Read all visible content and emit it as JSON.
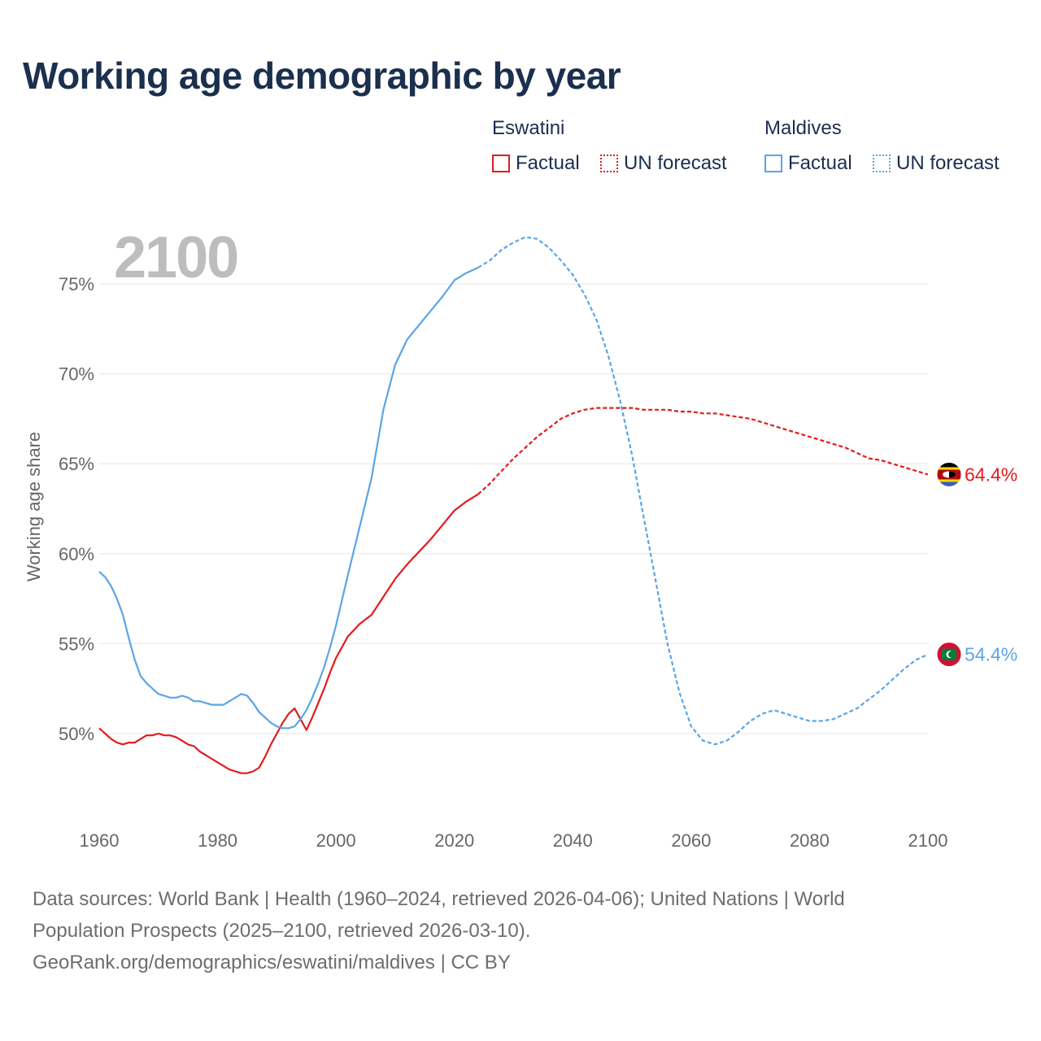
{
  "title": "Working age demographic by year",
  "current_year": "2100",
  "legend": {
    "groups": [
      {
        "country": "Eswatini",
        "color": "#e41a1c",
        "items": [
          {
            "label": "Factual",
            "style": "solid"
          },
          {
            "label": "UN forecast",
            "style": "dotted"
          }
        ]
      },
      {
        "country": "Maldives",
        "color": "#5aa5e6",
        "items": [
          {
            "label": "Factual",
            "style": "solid"
          },
          {
            "label": "UN forecast",
            "style": "dotted"
          }
        ]
      }
    ]
  },
  "footer": {
    "line1": "Data sources: World Bank | Health (1960–2024, retrieved 2026-04-06); United Nations | World",
    "line2": "Population Prospects (2025–2100, retrieved 2026-03-10).",
    "line3": "GeoRank.org/demographics/eswatini/maldives | CC BY"
  },
  "chart_data": {
    "type": "line",
    "title": "Working age demographic by year",
    "xlabel": "",
    "ylabel": "Working age share",
    "xlim": [
      1960,
      2100
    ],
    "ylim": [
      45,
      78
    ],
    "x_ticks": [
      1960,
      1980,
      2000,
      2020,
      2040,
      2060,
      2080,
      2100
    ],
    "y_ticks": [
      50,
      55,
      60,
      65,
      70,
      75
    ],
    "y_tick_labels": [
      "50%",
      "55%",
      "60%",
      "65%",
      "70%",
      "75%"
    ],
    "grid": "horizontal",
    "factual_range": [
      1960,
      2024
    ],
    "forecast_range": [
      2025,
      2100
    ],
    "series": [
      {
        "name": "Eswatini",
        "color": "#e41a1c",
        "end_label": "64.4%",
        "flag": "eswatini",
        "x": [
          1960,
          1961,
          1962,
          1963,
          1964,
          1965,
          1966,
          1967,
          1968,
          1969,
          1970,
          1971,
          1972,
          1973,
          1974,
          1975,
          1976,
          1977,
          1978,
          1979,
          1980,
          1981,
          1982,
          1983,
          1984,
          1985,
          1986,
          1987,
          1988,
          1989,
          1990,
          1991,
          1992,
          1993,
          1994,
          1995,
          1996,
          1997,
          1998,
          1999,
          2000,
          2002,
          2004,
          2006,
          2008,
          2010,
          2012,
          2014,
          2016,
          2018,
          2020,
          2022,
          2024,
          2026,
          2028,
          2030,
          2032,
          2034,
          2036,
          2038,
          2040,
          2042,
          2044,
          2046,
          2048,
          2050,
          2052,
          2054,
          2056,
          2058,
          2060,
          2062,
          2064,
          2066,
          2068,
          2070,
          2072,
          2074,
          2076,
          2078,
          2080,
          2082,
          2084,
          2086,
          2088,
          2090,
          2092,
          2094,
          2096,
          2098,
          2100
        ],
        "y": [
          50.3,
          50.0,
          49.7,
          49.5,
          49.4,
          49.5,
          49.5,
          49.7,
          49.9,
          49.9,
          50.0,
          49.9,
          49.9,
          49.8,
          49.6,
          49.4,
          49.3,
          49.0,
          48.8,
          48.6,
          48.4,
          48.2,
          48.0,
          47.9,
          47.8,
          47.8,
          47.9,
          48.1,
          48.7,
          49.4,
          50.0,
          50.6,
          51.1,
          51.4,
          50.8,
          50.2,
          50.9,
          51.7,
          52.5,
          53.4,
          54.2,
          55.4,
          56.1,
          56.6,
          57.6,
          58.6,
          59.4,
          60.1,
          60.8,
          61.6,
          62.4,
          62.9,
          63.3,
          63.9,
          64.6,
          65.3,
          65.9,
          66.5,
          67.0,
          67.5,
          67.8,
          68.0,
          68.1,
          68.1,
          68.1,
          68.1,
          68.0,
          68.0,
          68.0,
          67.9,
          67.9,
          67.8,
          67.8,
          67.7,
          67.6,
          67.5,
          67.3,
          67.1,
          66.9,
          66.7,
          66.5,
          66.3,
          66.1,
          65.9,
          65.6,
          65.3,
          65.2,
          65.0,
          64.8,
          64.6,
          64.4
        ]
      },
      {
        "name": "Maldives",
        "color": "#5aa5e6",
        "end_label": "54.4%",
        "flag": "maldives",
        "x": [
          1960,
          1961,
          1962,
          1963,
          1964,
          1965,
          1966,
          1967,
          1968,
          1969,
          1970,
          1971,
          1972,
          1973,
          1974,
          1975,
          1976,
          1977,
          1978,
          1979,
          1980,
          1981,
          1982,
          1983,
          1984,
          1985,
          1986,
          1987,
          1988,
          1989,
          1990,
          1991,
          1992,
          1993,
          1994,
          1995,
          1996,
          1997,
          1998,
          1999,
          2000,
          2002,
          2004,
          2006,
          2008,
          2010,
          2012,
          2014,
          2016,
          2018,
          2020,
          2022,
          2024,
          2026,
          2028,
          2030,
          2032,
          2034,
          2036,
          2038,
          2040,
          2042,
          2044,
          2046,
          2048,
          2050,
          2052,
          2054,
          2056,
          2058,
          2060,
          2062,
          2064,
          2066,
          2068,
          2070,
          2072,
          2074,
          2076,
          2078,
          2080,
          2082,
          2084,
          2086,
          2088,
          2090,
          2092,
          2094,
          2096,
          2098,
          2100
        ],
        "y": [
          59.0,
          58.7,
          58.2,
          57.5,
          56.6,
          55.3,
          54.1,
          53.2,
          52.8,
          52.5,
          52.2,
          52.1,
          52.0,
          52.0,
          52.1,
          52.0,
          51.8,
          51.8,
          51.7,
          51.6,
          51.6,
          51.6,
          51.8,
          52.0,
          52.2,
          52.1,
          51.7,
          51.2,
          50.9,
          50.6,
          50.4,
          50.3,
          50.3,
          50.4,
          50.8,
          51.3,
          52.0,
          52.8,
          53.7,
          54.8,
          56.0,
          58.8,
          61.5,
          64.2,
          68.0,
          70.5,
          71.9,
          72.7,
          73.5,
          74.3,
          75.2,
          75.6,
          75.9,
          76.3,
          76.9,
          77.3,
          77.6,
          77.5,
          77.0,
          76.3,
          75.5,
          74.4,
          73.0,
          71.0,
          68.5,
          65.5,
          62.0,
          58.5,
          55.0,
          52.3,
          50.4,
          49.6,
          49.4,
          49.6,
          50.1,
          50.7,
          51.1,
          51.3,
          51.1,
          50.9,
          50.7,
          50.7,
          50.8,
          51.1,
          51.4,
          51.9,
          52.4,
          53.0,
          53.6,
          54.1,
          54.4
        ]
      }
    ]
  }
}
